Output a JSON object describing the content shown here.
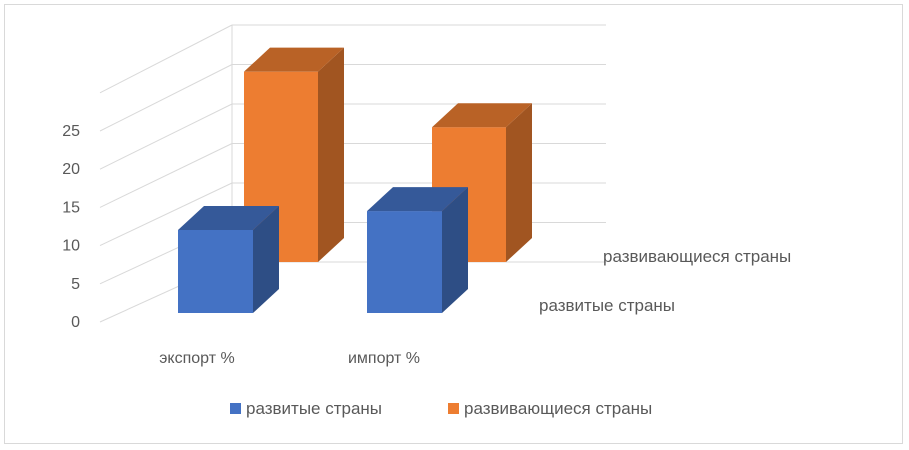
{
  "chart_data": {
    "type": "bar",
    "three_d": true,
    "categories": [
      "экспорт %",
      "импорт %"
    ],
    "series": [
      {
        "name": "развитые страны",
        "values": [
          11,
          13.5
        ],
        "color": "#4472C4"
      },
      {
        "name": "развивающиеся страны",
        "values": [
          24,
          17
        ],
        "color": "#ED7D31"
      }
    ],
    "y_ticks": [
      0,
      5,
      10,
      15,
      20,
      25
    ],
    "ylim": [
      0,
      30
    ],
    "grid": true,
    "legend_position": "bottom",
    "depth_axis_labels": [
      "развитые страны",
      "развивающиеся страны"
    ]
  }
}
